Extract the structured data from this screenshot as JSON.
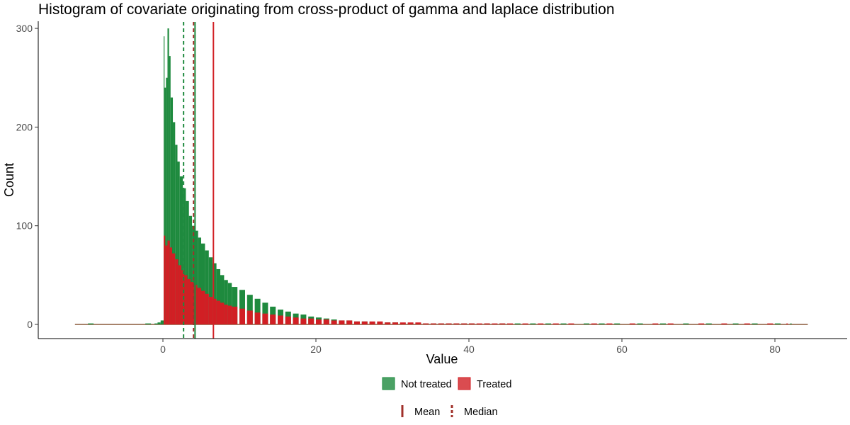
{
  "chart_data": {
    "type": "histogram",
    "title": "Histogram of covariate originating from cross-product of gamma and laplace distribution",
    "xlabel": "Value",
    "ylabel": "Count",
    "xlim": [
      -11.5,
      84.3
    ],
    "ylim": [
      0,
      300
    ],
    "x_ticks": [
      0,
      20,
      40,
      60,
      80
    ],
    "y_ticks": [
      0,
      100,
      200,
      300
    ],
    "grid": false,
    "series": [
      {
        "name": "Not treated",
        "color": "#1e8a3e",
        "points": [
          [
            -9.8,
            1
          ],
          [
            -2.3,
            1
          ],
          [
            -1.1,
            1
          ],
          [
            -0.7,
            2
          ],
          [
            -0.3,
            4
          ],
          [
            0.1,
            292
          ],
          [
            0.2,
            240
          ],
          [
            0.4,
            250
          ],
          [
            0.6,
            300
          ],
          [
            0.8,
            272
          ],
          [
            1.0,
            230
          ],
          [
            1.3,
            205
          ],
          [
            1.6,
            182
          ],
          [
            1.9,
            165
          ],
          [
            2.2,
            150
          ],
          [
            2.6,
            138
          ],
          [
            3.0,
            125
          ],
          [
            3.4,
            110
          ],
          [
            3.8,
            100
          ],
          [
            4.2,
            95
          ],
          [
            4.6,
            88
          ],
          [
            5.0,
            82
          ],
          [
            5.5,
            75
          ],
          [
            6.0,
            68
          ],
          [
            6.5,
            62
          ],
          [
            7.0,
            56
          ],
          [
            7.5,
            50
          ],
          [
            8.0,
            45
          ],
          [
            8.5,
            42
          ],
          [
            9.0,
            38
          ],
          [
            10.0,
            35
          ],
          [
            11.0,
            30
          ],
          [
            12.0,
            26
          ],
          [
            13.0,
            22
          ],
          [
            14.0,
            18
          ],
          [
            15.0,
            15
          ],
          [
            16.0,
            13
          ],
          [
            17.0,
            11
          ],
          [
            18.0,
            10
          ],
          [
            19.0,
            8
          ],
          [
            20.0,
            7
          ],
          [
            21.0,
            6
          ],
          [
            22.0,
            5
          ],
          [
            23.0,
            4
          ],
          [
            24.0,
            4
          ],
          [
            25.0,
            3
          ],
          [
            26.0,
            3
          ],
          [
            27.0,
            2
          ],
          [
            28.0,
            2
          ],
          [
            29.0,
            2
          ],
          [
            30.0,
            2
          ],
          [
            31.0,
            1
          ],
          [
            32.0,
            1
          ],
          [
            33.0,
            1
          ],
          [
            34.0,
            1
          ],
          [
            35.0,
            1
          ],
          [
            36.0,
            1
          ],
          [
            37.0,
            1
          ],
          [
            38.0,
            1
          ],
          [
            39.0,
            1
          ],
          [
            40.0,
            1
          ],
          [
            42.0,
            1
          ],
          [
            44.0,
            1
          ],
          [
            46.0,
            1
          ],
          [
            48.0,
            1
          ],
          [
            50.0,
            1
          ],
          [
            52.0,
            1
          ],
          [
            55.0,
            1
          ],
          [
            57.0,
            1
          ],
          [
            59.0,
            1
          ],
          [
            62.0,
            1
          ],
          [
            65.0,
            1
          ],
          [
            68.0,
            1
          ],
          [
            71.0,
            1
          ],
          [
            74.5,
            1
          ],
          [
            77.0,
            1
          ],
          [
            80.0,
            1
          ],
          [
            82.0,
            1
          ]
        ]
      },
      {
        "name": "Treated",
        "color": "#d11f24",
        "points": [
          [
            0.1,
            90
          ],
          [
            0.3,
            80
          ],
          [
            0.6,
            85
          ],
          [
            0.9,
            78
          ],
          [
            1.2,
            72
          ],
          [
            1.6,
            66
          ],
          [
            2.0,
            60
          ],
          [
            2.4,
            55
          ],
          [
            2.8,
            50
          ],
          [
            3.2,
            46
          ],
          [
            3.6,
            43
          ],
          [
            4.0,
            40
          ],
          [
            4.5,
            37
          ],
          [
            5.0,
            34
          ],
          [
            5.5,
            31
          ],
          [
            6.0,
            28
          ],
          [
            6.5,
            26
          ],
          [
            7.0,
            24
          ],
          [
            7.5,
            22
          ],
          [
            8.0,
            20
          ],
          [
            8.5,
            19
          ],
          [
            9.0,
            18
          ],
          [
            10.0,
            16
          ],
          [
            11.0,
            14
          ],
          [
            12.0,
            12
          ],
          [
            13.0,
            11
          ],
          [
            14.0,
            10
          ],
          [
            15.0,
            9
          ],
          [
            16.0,
            8
          ],
          [
            17.0,
            7
          ],
          [
            18.0,
            6
          ],
          [
            19.0,
            6
          ],
          [
            20.0,
            5
          ],
          [
            21.0,
            5
          ],
          [
            22.0,
            4
          ],
          [
            23.0,
            4
          ],
          [
            24.0,
            4
          ],
          [
            25.0,
            3
          ],
          [
            26.0,
            3
          ],
          [
            27.0,
            3
          ],
          [
            28.0,
            3
          ],
          [
            29.0,
            2
          ],
          [
            30.0,
            2
          ],
          [
            31.0,
            2
          ],
          [
            32.0,
            2
          ],
          [
            33.0,
            2
          ],
          [
            34.0,
            1
          ],
          [
            35.0,
            1
          ],
          [
            36.0,
            1
          ],
          [
            37.0,
            1
          ],
          [
            38.0,
            1
          ],
          [
            39.0,
            1
          ],
          [
            40.0,
            1
          ],
          [
            41.0,
            1
          ],
          [
            42.0,
            1
          ],
          [
            43.0,
            1
          ],
          [
            44.0,
            1
          ],
          [
            45.0,
            1
          ],
          [
            47.0,
            1
          ],
          [
            49.0,
            1
          ],
          [
            51.0,
            1
          ],
          [
            53.0,
            1
          ],
          [
            56.0,
            1
          ],
          [
            58.0,
            1
          ],
          [
            61.0,
            1
          ],
          [
            64.0,
            1
          ],
          [
            66.0,
            1
          ],
          [
            70.0,
            1
          ],
          [
            73.0,
            1
          ],
          [
            76.0,
            1
          ],
          [
            79.0,
            1
          ],
          [
            81.5,
            1
          ]
        ]
      }
    ],
    "reference_lines": [
      {
        "group": "Not treated",
        "stat": "Mean",
        "x": 4.2,
        "style": "solid",
        "color": "#1e8a3e"
      },
      {
        "group": "Not treated",
        "stat": "Median",
        "x": 2.7,
        "style": "dashed",
        "color": "#1e8a3e"
      },
      {
        "group": "Treated",
        "stat": "Mean",
        "x": 6.6,
        "style": "solid",
        "color": "#d11f24"
      },
      {
        "group": "Treated",
        "stat": "Median",
        "x": 4.0,
        "style": "dashed",
        "color": "#a0302a"
      }
    ],
    "legend": {
      "position": "bottom",
      "fill": [
        {
          "label": "Not treated",
          "color": "#1e8a3e"
        },
        {
          "label": "Treated",
          "color": "#d11f24"
        }
      ],
      "linetype": [
        {
          "label": "Mean",
          "style": "solid"
        },
        {
          "label": "Median",
          "style": "dashed"
        }
      ],
      "line_color": "#a0302a"
    }
  }
}
